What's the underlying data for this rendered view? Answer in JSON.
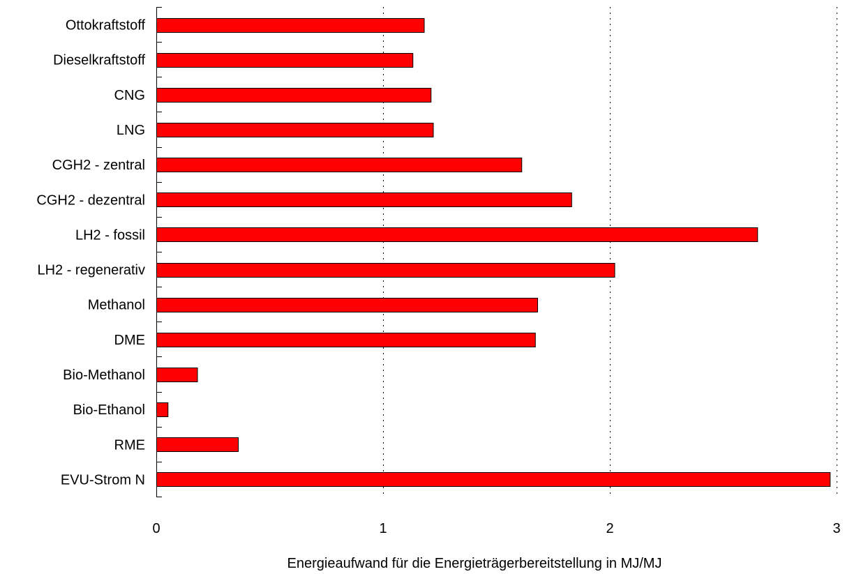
{
  "chart_data": {
    "type": "bar",
    "orientation": "horizontal",
    "categories": [
      "Ottokraftstoff",
      "Dieselkraftstoff",
      "CNG",
      "LNG",
      "CGH2 - zentral",
      "CGH2 - dezentral",
      "LH2 - fossil",
      "LH2 - regenerativ",
      "Methanol",
      "DME",
      "Bio-Methanol",
      "Bio-Ethanol",
      "RME",
      "EVU-Strom N"
    ],
    "values": [
      1.18,
      1.13,
      1.21,
      1.22,
      1.61,
      1.83,
      2.65,
      2.02,
      1.68,
      1.67,
      0.18,
      0.05,
      0.36,
      2.97
    ],
    "xlabel": "Energieaufwand für die Energieträgerbereitstellung in MJ/MJ",
    "ylabel": "",
    "xlim": [
      0,
      3
    ],
    "xticks": [
      "0",
      "1",
      "2",
      "3"
    ],
    "grid": "vertical dotted",
    "bar_color": "#ff0000",
    "bar_edge_color": "#000000"
  }
}
